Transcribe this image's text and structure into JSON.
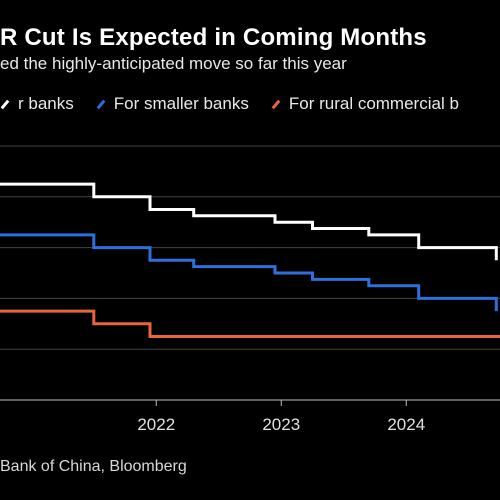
{
  "header": {
    "title": "R Cut Is Expected in Coming Months",
    "subtitle": "ed the highly-anticipated move so far this year",
    "source": "Bank of China, Bloomberg"
  },
  "colors": {
    "background": "#000000",
    "white_series": "#ffffff",
    "blue_series": "#2f6fdc",
    "orange_series": "#e8643c",
    "grid": "#444444"
  },
  "chart_data": {
    "type": "line",
    "title": "R Cut Is Expected in Coming Months",
    "subtitle": "ed the highly-anticipated move so far this year",
    "x_ticks": [
      "2022",
      "2023",
      "2024"
    ],
    "x_tick_values": [
      2022.0,
      2023.0,
      2024.0
    ],
    "xlim": [
      2020.75,
      2024.75
    ],
    "ylim": [
      4.0,
      14.0
    ],
    "grid": "horizontal",
    "legend_position": "top-left",
    "series": [
      {
        "name": "r banks",
        "color": "#ffffff",
        "points": [
          [
            2020.75,
            12.5
          ],
          [
            2021.0,
            12.5
          ],
          [
            2021.5,
            12.0
          ],
          [
            2021.95,
            11.5
          ],
          [
            2022.3,
            11.25
          ],
          [
            2022.95,
            11.0
          ],
          [
            2023.25,
            10.75
          ],
          [
            2023.7,
            10.5
          ],
          [
            2024.1,
            10.0
          ],
          [
            2024.68,
            10.0
          ],
          [
            2024.72,
            9.5
          ]
        ]
      },
      {
        "name": "For smaller banks",
        "color": "#2f6fdc",
        "points": [
          [
            2020.75,
            10.5
          ],
          [
            2021.0,
            10.5
          ],
          [
            2021.5,
            10.0
          ],
          [
            2021.95,
            9.5
          ],
          [
            2022.3,
            9.25
          ],
          [
            2022.95,
            9.0
          ],
          [
            2023.25,
            8.75
          ],
          [
            2023.7,
            8.5
          ],
          [
            2024.1,
            8.0
          ],
          [
            2024.68,
            8.0
          ],
          [
            2024.72,
            7.5
          ]
        ]
      },
      {
        "name": "For rural commercial b",
        "color": "#e8643c",
        "points": [
          [
            2020.75,
            7.5
          ],
          [
            2021.0,
            7.5
          ],
          [
            2021.5,
            7.0
          ],
          [
            2021.95,
            6.5
          ],
          [
            2024.75,
            6.5
          ]
        ]
      }
    ]
  }
}
